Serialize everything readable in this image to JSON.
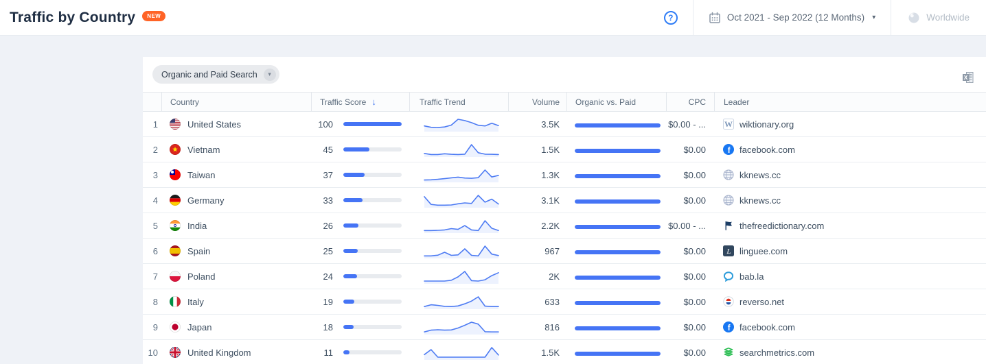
{
  "header": {
    "title": "Traffic by Country",
    "badge": "NEW",
    "date_range": "Oct 2021 - Sep 2022 (12 Months)",
    "region": "Worldwide"
  },
  "icons": {
    "help_glyph": "?",
    "sort_desc_glyph": "↓",
    "caret_down_glyph": "▾"
  },
  "toolbar": {
    "filter_label": "Organic and Paid Search"
  },
  "table": {
    "columns": [
      "Country",
      "Traffic Score",
      "Traffic Trend",
      "Volume",
      "Organic vs. Paid",
      "CPC",
      "Leader"
    ],
    "rows": [
      {
        "rank": "1",
        "country": "United States",
        "flag": "us",
        "score": 100,
        "trend": [
          3,
          2.2,
          2,
          2.4,
          3.5,
          7,
          6.2,
          5,
          3.4,
          3,
          4.6,
          3.2
        ],
        "volume": "3.5K",
        "organic_pct": 100,
        "cpc": "$0.00 - ...",
        "leader": "wiktionary.org",
        "leader_icon": "wiktionary"
      },
      {
        "rank": "2",
        "country": "Vietnam",
        "flag": "vn",
        "score": 45,
        "trend": [
          1.6,
          1,
          1,
          1.4,
          1.1,
          1,
          1.2,
          6.5,
          2,
          1.2,
          1.1,
          1
        ],
        "volume": "1.5K",
        "organic_pct": 100,
        "cpc": "$0.00",
        "leader": "facebook.com",
        "leader_icon": "facebook"
      },
      {
        "rank": "3",
        "country": "Taiwan",
        "flag": "tw",
        "score": 37,
        "trend": [
          1,
          1.1,
          1.4,
          1.8,
          2.3,
          2.7,
          2.2,
          2,
          2.4,
          7,
          2.8,
          3.8
        ],
        "volume": "1.3K",
        "organic_pct": 100,
        "cpc": "$0.00",
        "leader": "kknews.cc",
        "leader_icon": "globe"
      },
      {
        "rank": "4",
        "country": "Germany",
        "flag": "de",
        "score": 33,
        "trend": [
          5.5,
          1.4,
          1,
          1,
          1.1,
          1.7,
          2.2,
          1.9,
          6.2,
          2.6,
          4.2,
          1.6
        ],
        "volume": "3.1K",
        "organic_pct": 100,
        "cpc": "$0.00",
        "leader": "kknews.cc",
        "leader_icon": "globe"
      },
      {
        "rank": "5",
        "country": "India",
        "flag": "in",
        "score": 26,
        "trend": [
          1,
          1,
          1.1,
          1.3,
          2,
          1.6,
          3.6,
          1.3,
          1,
          6.2,
          2.2,
          1
        ],
        "volume": "2.2K",
        "organic_pct": 100,
        "cpc": "$0.00 - ...",
        "leader": "thefreedictionary.com",
        "leader_icon": "dictionary"
      },
      {
        "rank": "6",
        "country": "Spain",
        "flag": "es",
        "score": 25,
        "trend": [
          1,
          1,
          1.4,
          3,
          1.3,
          1.6,
          4.9,
          1.3,
          1,
          6.4,
          2,
          1.2
        ],
        "volume": "967",
        "organic_pct": 100,
        "cpc": "$0.00",
        "leader": "linguee.com",
        "leader_icon": "linguee"
      },
      {
        "rank": "7",
        "country": "Poland",
        "flag": "pl",
        "score": 24,
        "trend": [
          1,
          1,
          1,
          1,
          1.4,
          3,
          5.6,
          1.2,
          1,
          1.6,
          3.6,
          5
        ],
        "volume": "2K",
        "organic_pct": 100,
        "cpc": "$0.00",
        "leader": "bab.la",
        "leader_icon": "bab"
      },
      {
        "rank": "8",
        "country": "Italy",
        "flag": "it",
        "score": 19,
        "trend": [
          1,
          1.9,
          1.6,
          1.1,
          1,
          1.3,
          2.4,
          3.8,
          6,
          1.2,
          1,
          1
        ],
        "volume": "633",
        "organic_pct": 100,
        "cpc": "$0.00",
        "leader": "reverso.net",
        "leader_icon": "reverso"
      },
      {
        "rank": "9",
        "country": "Japan",
        "flag": "jp",
        "score": 18,
        "trend": [
          1,
          1.9,
          2.1,
          1.9,
          2,
          3,
          4.4,
          6,
          5,
          1.1,
          1,
          1
        ],
        "volume": "816",
        "organic_pct": 100,
        "cpc": "$0.00",
        "leader": "facebook.com",
        "leader_icon": "facebook"
      },
      {
        "rank": "10",
        "country": "United Kingdom",
        "flag": "gb",
        "score": 11,
        "trend": [
          2.2,
          4.6,
          1,
          1,
          1,
          1,
          1,
          1,
          1,
          1,
          5.6,
          2
        ],
        "volume": "1.5K",
        "organic_pct": 100,
        "cpc": "$0.00",
        "leader": "searchmetrics.com",
        "leader_icon": "searchmetrics"
      }
    ]
  },
  "colors": {
    "accent_blue": "#4574f5",
    "sparkline_blue": "#4d7bf3",
    "badge_orange": "#ff6326"
  }
}
